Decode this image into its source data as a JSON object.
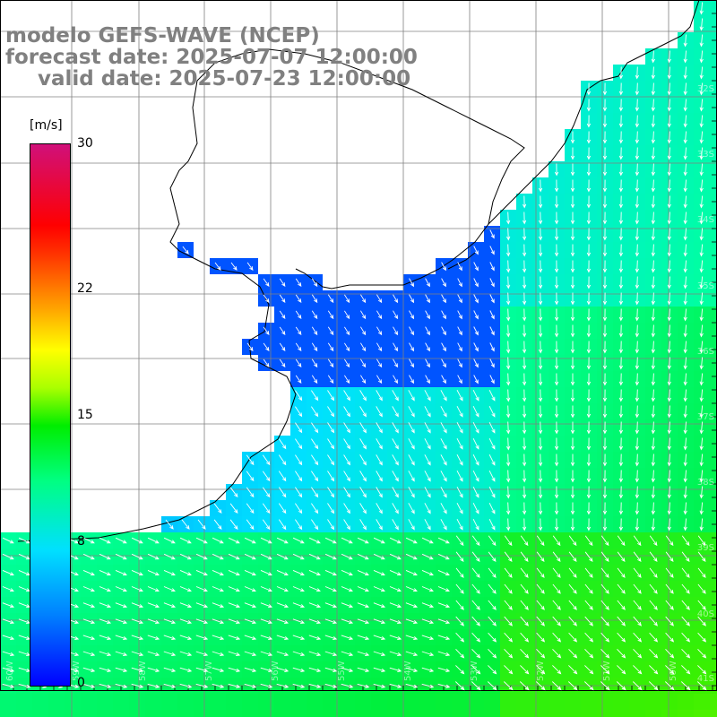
{
  "titles": {
    "line1": "modelo GEFS-WAVE (NCEP)",
    "line2": "forecast date: 2025-07-07 12:00:00",
    "line3": "valid date: 2025-07-23 12:00:00"
  },
  "colorbar": {
    "unit": "[m/s]",
    "min": 0,
    "max": 30,
    "ticks": [
      {
        "value": 30,
        "label": "30"
      },
      {
        "value": 22,
        "label": "22"
      },
      {
        "value": 15,
        "label": "15"
      },
      {
        "value": 8,
        "label": "8"
      },
      {
        "value": 0,
        "label": "0"
      }
    ],
    "colors": [
      "#0000ff",
      "#0080ff",
      "#00e0ff",
      "#00ff80",
      "#00ee00",
      "#aaff00",
      "#ffff00",
      "#ffa000",
      "#ff0000",
      "#d0107a"
    ]
  },
  "map": {
    "lat_labels": [
      "32S",
      "33S",
      "34S",
      "35S",
      "36S",
      "37S",
      "38S",
      "39S",
      "40S",
      "41S"
    ],
    "lon_labels": [
      "60W",
      "59W",
      "58W",
      "57W",
      "56W",
      "55W",
      "54W",
      "53W",
      "52W",
      "51W",
      "50W"
    ],
    "arrow_color": "#ffffff",
    "coast_color": "#000000",
    "grid_color": "#808080"
  }
}
